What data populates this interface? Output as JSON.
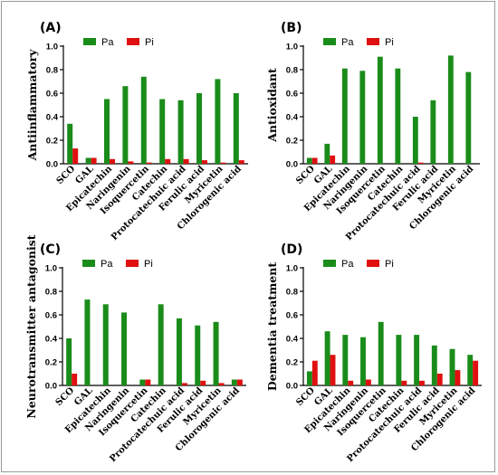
{
  "colors": {
    "pa": "#1a8c1a",
    "pi": "#e01010"
  },
  "chart_data": [
    {
      "type": "bar",
      "panel": "(A)",
      "ylabel": "Antiinflammatory",
      "ylim": [
        0,
        1.0
      ],
      "yticks": [
        "0.0",
        "0.2",
        "0.4",
        "0.6",
        "0.8",
        "1.0"
      ],
      "legend": [
        "Pa",
        "Pi"
      ],
      "legend_position": "top-left",
      "categories": [
        "SCO",
        "GAL",
        "Epicatechin",
        "Naringenin",
        "Isoquercetin",
        "Catechin",
        "Protocatechuic acid",
        "Ferulic acid",
        "Myricetin",
        "Chlorogenic acid"
      ],
      "series": [
        {
          "name": "Pa",
          "values": [
            0.34,
            0.05,
            0.55,
            0.66,
            0.74,
            0.55,
            0.54,
            0.6,
            0.72,
            0.6
          ]
        },
        {
          "name": "Pi",
          "values": [
            0.13,
            0.05,
            0.04,
            0.02,
            0.01,
            0.04,
            0.04,
            0.03,
            0.01,
            0.03
          ]
        }
      ]
    },
    {
      "type": "bar",
      "panel": "(B)",
      "ylabel": "Antioxidant",
      "ylim": [
        0,
        1.0
      ],
      "yticks": [
        "0.0",
        "0.2",
        "0.4",
        "0.6",
        "0.8",
        "1.0"
      ],
      "legend": [
        "Pa",
        "Pi"
      ],
      "legend_position": "top-left",
      "categories": [
        "SCO",
        "GAL",
        "Epicatechin",
        "Naringenin",
        "Isoquercetin",
        "Catechin",
        "Protocatechuic acid",
        "Ferulic acid",
        "Myricetin",
        "Chlorogenic acid"
      ],
      "series": [
        {
          "name": "Pa",
          "values": [
            0.05,
            0.17,
            0.81,
            0.79,
            0.91,
            0.81,
            0.4,
            0.54,
            0.92,
            0.78
          ]
        },
        {
          "name": "Pi",
          "values": [
            0.05,
            0.07,
            0.0,
            0.0,
            0.0,
            0.0,
            0.01,
            0.0,
            0.0,
            0.0
          ]
        }
      ]
    },
    {
      "type": "bar",
      "panel": "(C)",
      "ylabel": "Neurotransmitter antagonist",
      "ylim": [
        0,
        1.0
      ],
      "yticks": [
        "0.0",
        "0.2",
        "0.4",
        "0.6",
        "0.8",
        "1.0"
      ],
      "legend": [
        "Pa",
        "Pi"
      ],
      "legend_position": "top-left",
      "categories": [
        "SCO",
        "GAL",
        "Epicatechin",
        "Naringenin",
        "Isoquercetin",
        "Catechin",
        "Protocatechuic acid",
        "Ferulic acid",
        "Myricetin",
        "Chlorogenic acid"
      ],
      "series": [
        {
          "name": "Pa",
          "values": [
            0.4,
            0.73,
            0.69,
            0.62,
            0.05,
            0.69,
            0.57,
            0.51,
            0.54,
            0.05
          ]
        },
        {
          "name": "Pi",
          "values": [
            0.1,
            0.0,
            0.0,
            0.0,
            0.05,
            0.0,
            0.02,
            0.04,
            0.02,
            0.05
          ]
        }
      ]
    },
    {
      "type": "bar",
      "panel": "(D)",
      "ylabel": "Dementia treatment",
      "ylim": [
        0,
        1.0
      ],
      "yticks": [
        "0.0",
        "0.2",
        "0.4",
        "0.6",
        "0.8",
        "1.0"
      ],
      "legend": [
        "Pa",
        "Pi"
      ],
      "legend_position": "top-left",
      "categories": [
        "SCO",
        "GAL",
        "Epicatechin",
        "Naringenin",
        "Isoquercetin",
        "Catechin",
        "Protocatechuic acid",
        "Ferulic acid",
        "Myricetin",
        "Chlorogenic acid"
      ],
      "series": [
        {
          "name": "Pa",
          "values": [
            0.12,
            0.46,
            0.43,
            0.41,
            0.54,
            0.43,
            0.43,
            0.34,
            0.31,
            0.26
          ]
        },
        {
          "name": "Pi",
          "values": [
            0.21,
            0.26,
            0.04,
            0.05,
            0.0,
            0.04,
            0.04,
            0.1,
            0.13,
            0.21
          ]
        }
      ]
    }
  ]
}
